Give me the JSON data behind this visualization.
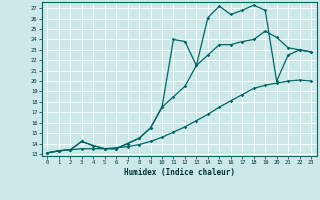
{
  "xlabel": "Humidex (Indice chaleur)",
  "bg_color": "#cde8e8",
  "line_color": "#006666",
  "grid_color": "#ffffff",
  "xlim": [
    -0.5,
    23.5
  ],
  "ylim": [
    12.8,
    27.6
  ],
  "xticks": [
    0,
    1,
    2,
    3,
    4,
    5,
    6,
    7,
    8,
    9,
    10,
    11,
    12,
    13,
    14,
    15,
    16,
    17,
    18,
    19,
    20,
    21,
    22,
    23
  ],
  "yticks": [
    13,
    14,
    15,
    16,
    17,
    18,
    19,
    20,
    21,
    22,
    23,
    24,
    25,
    26,
    27
  ],
  "line1_x": [
    0,
    1,
    2,
    3,
    4,
    5,
    6,
    7,
    8,
    9,
    10,
    11,
    12,
    13,
    14,
    15,
    16,
    17,
    18,
    19,
    20,
    21,
    22,
    23
  ],
  "line1_y": [
    13.1,
    13.3,
    13.4,
    13.5,
    13.5,
    13.5,
    13.6,
    13.7,
    13.9,
    14.2,
    14.6,
    15.1,
    15.6,
    16.2,
    16.8,
    17.5,
    18.1,
    18.7,
    19.3,
    19.6,
    19.8,
    20.0,
    20.1,
    20.0
  ],
  "line2_x": [
    0,
    1,
    2,
    3,
    4,
    5,
    6,
    7,
    8,
    9,
    10,
    11,
    12,
    13,
    14,
    15,
    16,
    17,
    18,
    19,
    20,
    21,
    22,
    23
  ],
  "line2_y": [
    13.1,
    13.3,
    13.4,
    14.2,
    13.8,
    13.5,
    13.5,
    14.0,
    14.5,
    15.5,
    17.5,
    18.5,
    19.5,
    21.5,
    22.5,
    23.5,
    23.5,
    23.8,
    24.0,
    24.8,
    24.2,
    23.2,
    23.0,
    22.8
  ],
  "line3_x": [
    0,
    1,
    2,
    3,
    4,
    5,
    6,
    7,
    8,
    9,
    10,
    11,
    12,
    13,
    14,
    15,
    16,
    17,
    18,
    19,
    20,
    21,
    22,
    23
  ],
  "line3_y": [
    13.1,
    13.3,
    13.4,
    14.2,
    13.8,
    13.5,
    13.5,
    14.0,
    14.5,
    15.5,
    17.5,
    24.0,
    23.8,
    21.5,
    26.1,
    27.2,
    26.4,
    26.8,
    27.3,
    26.8,
    20.0,
    22.5,
    23.0,
    22.8
  ]
}
